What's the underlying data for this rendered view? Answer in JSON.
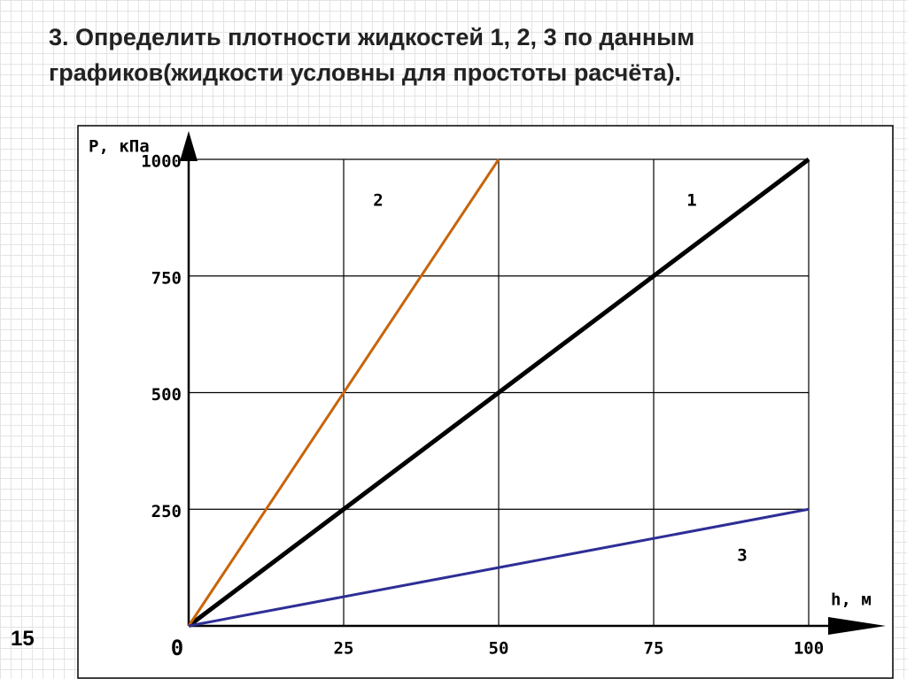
{
  "page_number": "15",
  "chart_data": {
    "type": "line",
    "title": "3. Определить плотности жидкостей 1, 2, 3 по данным графиков(жидкости условны для простоты расчёта).",
    "x_label": "h, м",
    "y_label": "P, кПа",
    "x": [
      0,
      50,
      100
    ],
    "series": [
      {
        "name": "1",
        "color": "#000000",
        "values": [
          0,
          500,
          1000
        ]
      },
      {
        "name": "2",
        "color": "#c8640a",
        "values": [
          0,
          1000,
          null
        ]
      },
      {
        "name": "3",
        "color": "#2e2e96",
        "values": [
          0,
          125,
          250
        ]
      }
    ],
    "xlim": [
      0,
      100
    ],
    "ylim": [
      0,
      1000
    ],
    "xticks": [
      0,
      25,
      50,
      75,
      100
    ],
    "yticks": [
      250,
      500,
      750,
      1000
    ],
    "grid": true
  }
}
